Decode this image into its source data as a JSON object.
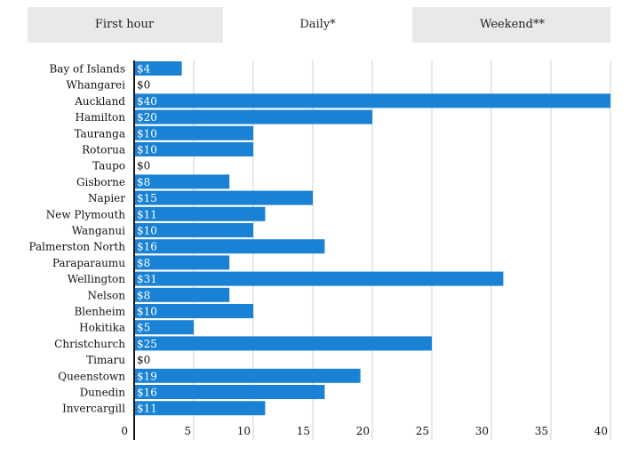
{
  "tabs": [
    {
      "label": "First hour",
      "active": false
    },
    {
      "label": "Daily*",
      "active": true
    },
    {
      "label": "Weekend**",
      "active": false
    }
  ],
  "colors": {
    "bar": "#1a82d4",
    "gridline": "#d0d0d0",
    "axis": "#111111",
    "active_tab": "#ffffff",
    "inactive_tab": "#e9e9e9"
  },
  "chart_data": {
    "type": "bar",
    "orientation": "horizontal",
    "categories": [
      "Bay of Islands",
      "Whangarei",
      "Auckland",
      "Hamilton",
      "Tauranga",
      "Rotorua",
      "Taupo",
      "Gisborne",
      "Napier",
      "New Plymouth",
      "Wanganui",
      "Palmerston North",
      "Paraparaumu",
      "Wellington",
      "Nelson",
      "Blenheim",
      "Hokitika",
      "Christchurch",
      "Timaru",
      "Queenstown",
      "Dunedin",
      "Invercargill"
    ],
    "values": [
      4,
      0,
      40,
      20,
      10,
      10,
      0,
      8,
      15,
      11,
      10,
      16,
      8,
      31,
      8,
      10,
      5,
      25,
      0,
      19,
      16,
      11
    ],
    "value_labels": [
      "$4",
      "$0",
      "$40",
      "$20",
      "$10",
      "$10",
      "$0",
      "$8",
      "$15",
      "$11",
      "$10",
      "$16",
      "$8",
      "$31",
      "$8",
      "$10",
      "$5",
      "$25",
      "$0",
      "$19",
      "$16",
      "$11"
    ],
    "xlim": [
      0,
      40
    ],
    "xticks": [
      0,
      5,
      10,
      15,
      20,
      25,
      30,
      35,
      40
    ],
    "grid": true,
    "legend": "none",
    "title": "",
    "xlabel": "",
    "ylabel": ""
  }
}
